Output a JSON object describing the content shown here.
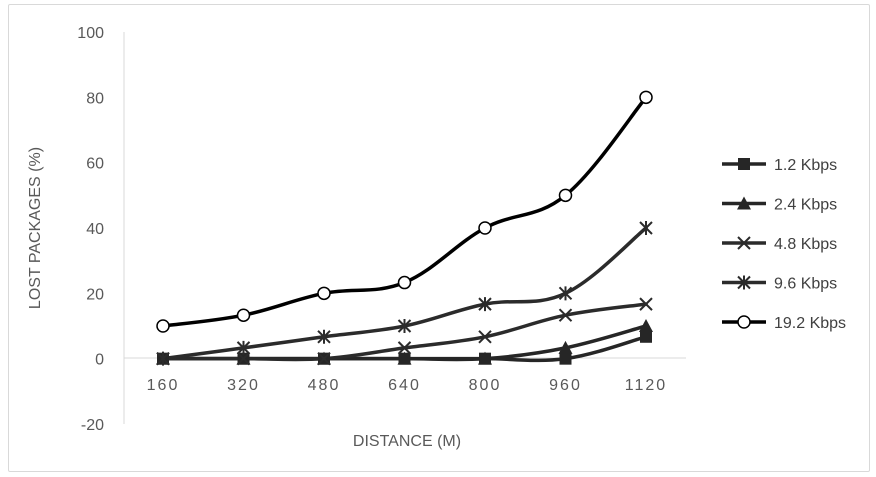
{
  "chart_data": {
    "type": "line",
    "title": "",
    "xlabel": "DISTANCE (M)",
    "ylabel": "LOST PACKAGES (%)",
    "categories": [
      "160",
      "320",
      "480",
      "640",
      "800",
      "960",
      "1120"
    ],
    "ylim": [
      -20,
      100
    ],
    "yticks": [
      "100",
      "80",
      "60",
      "40",
      "20",
      "0",
      "-20"
    ],
    "ytick_values": [
      100,
      80,
      60,
      40,
      20,
      0,
      -20
    ],
    "grid": false,
    "smooth": true,
    "legend_position": "right",
    "series": [
      {
        "name": "1.2 Kbps",
        "marker": "square",
        "color": "#262626",
        "values": [
          0,
          0,
          0,
          0,
          0,
          0,
          6.7
        ]
      },
      {
        "name": "2.4 Kbps",
        "marker": "triangle",
        "color": "#262626",
        "values": [
          0,
          0,
          0,
          0,
          0,
          3.3,
          10
        ]
      },
      {
        "name": "4.8 Kbps",
        "marker": "x",
        "color": "#2b2b2b",
        "values": [
          0,
          0,
          0,
          3.3,
          6.7,
          13.3,
          16.7
        ]
      },
      {
        "name": "9.6 Kbps",
        "marker": "star",
        "color": "#2b2b2b",
        "values": [
          0,
          3.3,
          6.7,
          10,
          16.7,
          20,
          40
        ]
      },
      {
        "name": "19.2 Kbps",
        "marker": "circle",
        "color": "#000000",
        "values": [
          10,
          13.3,
          20,
          23.3,
          40,
          50,
          80
        ]
      }
    ]
  }
}
